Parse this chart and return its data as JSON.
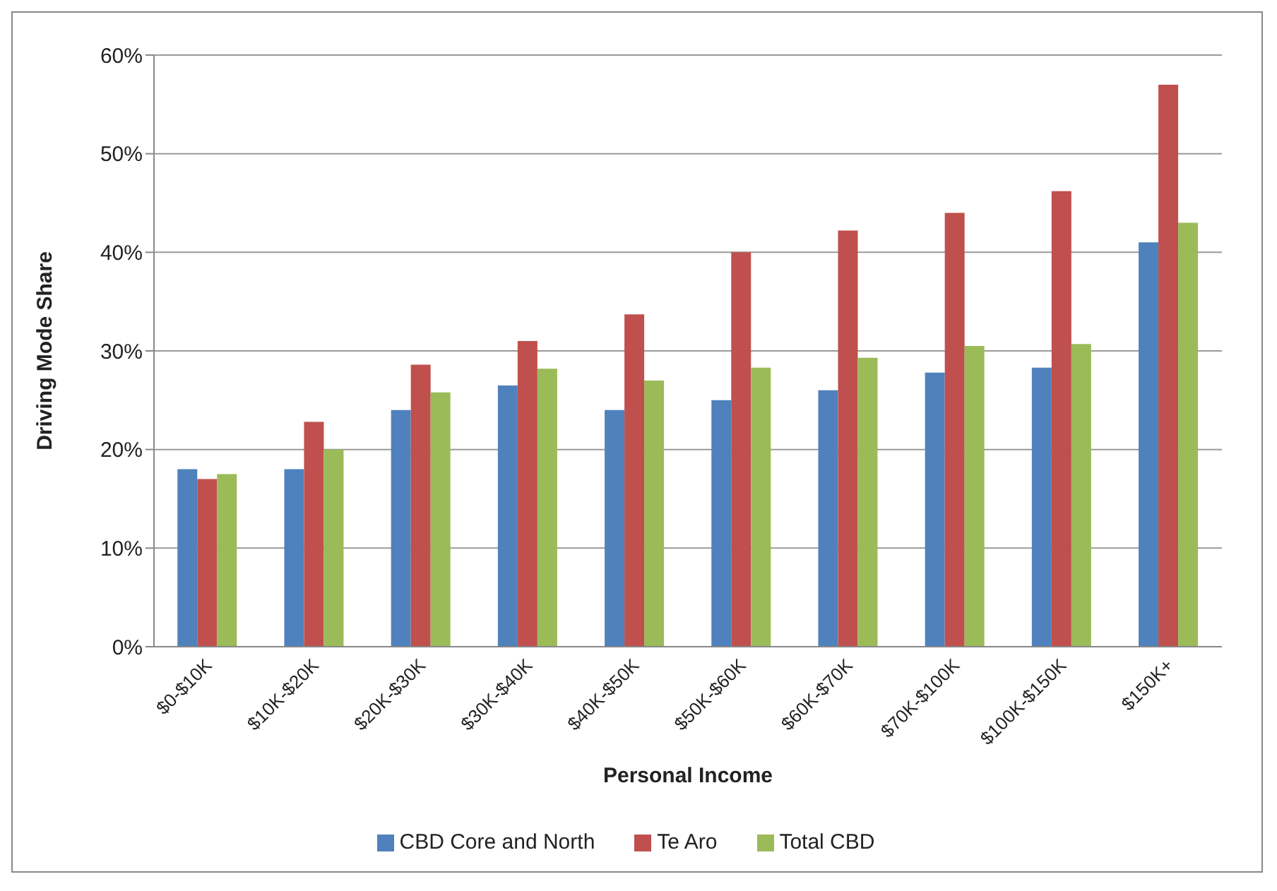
{
  "chart_data": {
    "type": "bar",
    "xlabel": "Personal Income",
    "ylabel": "Driving Mode Share",
    "categories": [
      "$0-$10K",
      "$10K-$20K",
      "$20K-$30K",
      "$30K-$40K",
      "$40K-$50K",
      "$50K-$60K",
      "$60K-$70K",
      "$70K-$100K",
      "$100K-$150K",
      "$150K+"
    ],
    "series": [
      {
        "name": "CBD Core and North",
        "color": "#4f81bd",
        "values": [
          18,
          18,
          24,
          26.5,
          24,
          25,
          26,
          27.8,
          28.3,
          41
        ]
      },
      {
        "name": "Te Aro",
        "color": "#c0504d",
        "values": [
          17,
          22.8,
          28.6,
          31,
          33.7,
          40,
          42.2,
          44,
          46.2,
          57
        ]
      },
      {
        "name": "Total CBD",
        "color": "#9bbb59",
        "values": [
          17.5,
          20,
          25.8,
          28.2,
          27,
          28.3,
          29.3,
          30.5,
          30.7,
          43
        ]
      }
    ],
    "ylim": [
      0,
      60
    ],
    "yticks": [
      {
        "value": 0,
        "label": "0%"
      },
      {
        "value": 10,
        "label": "10%"
      },
      {
        "value": 20,
        "label": "20%"
      },
      {
        "value": 30,
        "label": "30%"
      },
      {
        "value": 40,
        "label": "40%"
      },
      {
        "value": 50,
        "label": "50%"
      },
      {
        "value": 60,
        "label": "60%"
      }
    ],
    "grid": "y",
    "legend": "bottom"
  }
}
